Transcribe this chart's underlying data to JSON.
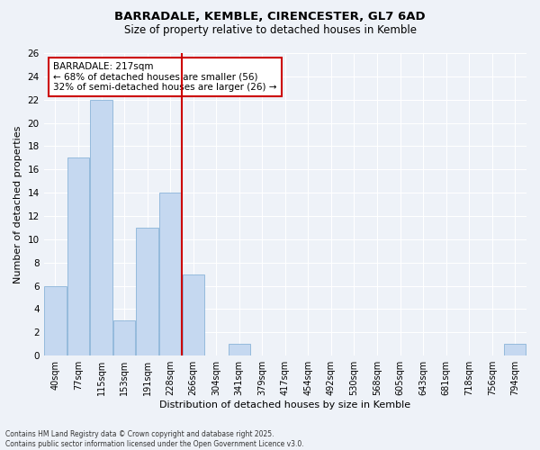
{
  "title1": "BARRADALE, KEMBLE, CIRENCESTER, GL7 6AD",
  "title2": "Size of property relative to detached houses in Kemble",
  "xlabel": "Distribution of detached houses by size in Kemble",
  "ylabel": "Number of detached properties",
  "categories": [
    "40sqm",
    "77sqm",
    "115sqm",
    "153sqm",
    "191sqm",
    "228sqm",
    "266sqm",
    "304sqm",
    "341sqm",
    "379sqm",
    "417sqm",
    "454sqm",
    "492sqm",
    "530sqm",
    "568sqm",
    "605sqm",
    "643sqm",
    "681sqm",
    "718sqm",
    "756sqm",
    "794sqm"
  ],
  "values": [
    6,
    17,
    22,
    3,
    11,
    14,
    7,
    0,
    1,
    0,
    0,
    0,
    0,
    0,
    0,
    0,
    0,
    0,
    0,
    0,
    1
  ],
  "bar_color": "#c5d8f0",
  "bar_edge_color": "#8ab4d8",
  "vline_x": 5.5,
  "vline_color": "#cc0000",
  "annotation_text": "BARRADALE: 217sqm\n← 68% of detached houses are smaller (56)\n32% of semi-detached houses are larger (26) →",
  "annotation_box_color": "white",
  "annotation_box_edge_color": "#cc0000",
  "ylim": [
    0,
    26
  ],
  "yticks": [
    0,
    2,
    4,
    6,
    8,
    10,
    12,
    14,
    16,
    18,
    20,
    22,
    24,
    26
  ],
  "background_color": "#eef2f8",
  "grid_color": "white",
  "footer_text": "Contains HM Land Registry data © Crown copyright and database right 2025.\nContains public sector information licensed under the Open Government Licence v3.0."
}
